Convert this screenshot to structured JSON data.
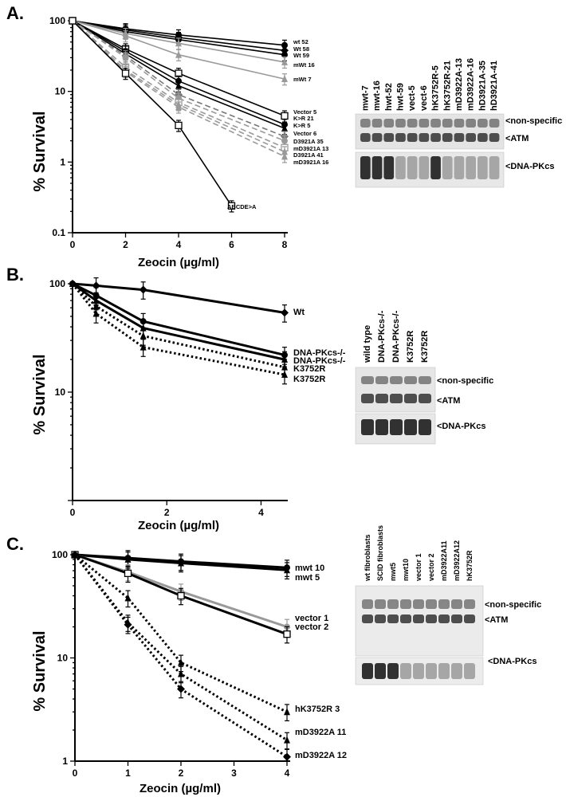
{
  "panels": [
    {
      "label": "A.",
      "ylabel": "% Survival",
      "xlabel": "Zeocin (µg/ml)"
    },
    {
      "label": "B.",
      "ylabel": "% Survival",
      "xlabel": "Zeocin (µg/ml)"
    },
    {
      "label": "C.",
      "ylabel": "% Survival",
      "xlabel": "Zeocin (µg/ml)"
    }
  ],
  "chart_data": [
    {
      "type": "line",
      "yscale": "log",
      "xlim": [
        0,
        8
      ],
      "ylim": [
        0.1,
        100
      ],
      "xticks": [
        "0",
        "2",
        "4",
        "6",
        "8"
      ],
      "yticks": [
        "0.1",
        "1",
        "10",
        "100"
      ],
      "xlabel": "Zeocin (µg/ml)",
      "ylabel": "% Survival",
      "series": [
        {
          "name": "wt 52",
          "x": [
            0,
            2,
            4,
            8
          ],
          "y": [
            100,
            77,
            63,
            45
          ],
          "color": "#000000",
          "style": "solid",
          "marker": "circle"
        },
        {
          "name": "Wt 58",
          "x": [
            0,
            2,
            4,
            8
          ],
          "y": [
            100,
            74,
            58,
            38
          ],
          "color": "#000000",
          "style": "solid",
          "marker": "diamond"
        },
        {
          "name": "Wt 59",
          "x": [
            0,
            2,
            4,
            8
          ],
          "y": [
            100,
            70,
            54,
            33
          ],
          "color": "#000000",
          "style": "solid",
          "marker": "circle"
        },
        {
          "name": "mWt 16",
          "x": [
            0,
            2,
            4,
            8
          ],
          "y": [
            100,
            66,
            48,
            26
          ],
          "color": "#999999",
          "style": "solid",
          "marker": "triangle"
        },
        {
          "name": "mWt 7",
          "x": [
            0,
            2,
            4,
            8
          ],
          "y": [
            100,
            61,
            33,
            15
          ],
          "color": "#999999",
          "style": "solid",
          "marker": "triangle"
        },
        {
          "name": "Vector 5",
          "x": [
            0,
            2,
            4,
            8
          ],
          "y": [
            100,
            40,
            18,
            4.5
          ],
          "color": "#000000",
          "style": "solid",
          "marker": "square"
        },
        {
          "name": "K>R 21",
          "x": [
            0,
            2,
            4,
            8
          ],
          "y": [
            100,
            37,
            14,
            3.4
          ],
          "color": "#000000",
          "style": "solid",
          "marker": "circle"
        },
        {
          "name": "K>R 5",
          "x": [
            0,
            2,
            4,
            8
          ],
          "y": [
            100,
            34,
            12,
            3.0
          ],
          "color": "#000000",
          "style": "solid",
          "marker": "triangle"
        },
        {
          "name": "Vector 6",
          "x": [
            0,
            2,
            4,
            8
          ],
          "y": [
            100,
            32,
            9,
            2.3
          ],
          "color": "#777777",
          "style": "dashed",
          "marker": "diamond"
        },
        {
          "name": "D3921A 35",
          "x": [
            0,
            2,
            4,
            8
          ],
          "y": [
            100,
            30,
            8,
            2.0
          ],
          "color": "#999999",
          "style": "dashed",
          "marker": "circle"
        },
        {
          "name": "mD3921A 13",
          "x": [
            0,
            2,
            4,
            8
          ],
          "y": [
            100,
            22,
            7,
            1.6
          ],
          "color": "#999999",
          "style": "dashed",
          "marker": "square"
        },
        {
          "name": "D3921A 41",
          "x": [
            0,
            2,
            4,
            8
          ],
          "y": [
            100,
            20,
            6.5,
            1.4
          ],
          "color": "#999999",
          "style": "dashed",
          "marker": "triangle"
        },
        {
          "name": "mD3921A 16",
          "x": [
            0,
            2,
            4,
            8
          ],
          "y": [
            100,
            19,
            6,
            1.2
          ],
          "color": "#999999",
          "style": "dashed",
          "marker": "triangle"
        },
        {
          "name": "ABCDE>A",
          "x": [
            0,
            2,
            4,
            6
          ],
          "y": [
            100,
            18,
            3.3,
            0.24
          ],
          "color": "#000000",
          "style": "solid",
          "marker": "square"
        }
      ]
    },
    {
      "type": "line",
      "yscale": "log",
      "xlim": [
        0,
        4.5
      ],
      "ylim": [
        1,
        100
      ],
      "xticks": [
        "0",
        "2",
        "4"
      ],
      "yticks": [
        "10",
        "100"
      ],
      "xlabel": "Zeocin (µg/ml)",
      "ylabel": "% Survival",
      "series": [
        {
          "name": "Wt",
          "x": [
            0,
            0.5,
            1.5,
            4.5
          ],
          "y": [
            100,
            96,
            88,
            54
          ],
          "color": "#000000",
          "style": "solid",
          "marker": "diamond"
        },
        {
          "name": "DNA-PKcs-/-",
          "x": [
            0,
            0.5,
            1.5,
            4.5
          ],
          "y": [
            100,
            78,
            45,
            22
          ],
          "color": "#000000",
          "style": "solid",
          "marker": "circle"
        },
        {
          "name": "DNA-PKcs-/-",
          "x": [
            0,
            0.5,
            1.5,
            4.5
          ],
          "y": [
            100,
            70,
            39,
            20
          ],
          "color": "#000000",
          "style": "solid",
          "marker": "triangle"
        },
        {
          "name": "K3752R",
          "x": [
            0,
            0.5,
            1.5,
            4.5
          ],
          "y": [
            100,
            62,
            33,
            17
          ],
          "color": "#000000",
          "style": "dotted",
          "marker": "triangle"
        },
        {
          "name": "K3752R",
          "x": [
            0,
            0.5,
            1.5,
            4.5
          ],
          "y": [
            100,
            53,
            26,
            14.5
          ],
          "color": "#000000",
          "style": "dotted",
          "marker": "triangle"
        }
      ]
    },
    {
      "type": "line",
      "yscale": "log",
      "xlim": [
        0,
        4
      ],
      "ylim": [
        1,
        100
      ],
      "xticks": [
        "0",
        "1",
        "2",
        "3",
        "4"
      ],
      "yticks": [
        "1",
        "10",
        "100"
      ],
      "xlabel": "Zeocin (µg/ml)",
      "ylabel": "% Survival",
      "series": [
        {
          "name": "mwt 10",
          "x": [
            0,
            1,
            2,
            4
          ],
          "y": [
            100,
            93,
            86,
            75
          ],
          "color": "#000000",
          "style": "solid",
          "marker": "circle"
        },
        {
          "name": "mwt 5",
          "x": [
            0,
            1,
            2,
            4
          ],
          "y": [
            100,
            90,
            83,
            71
          ],
          "color": "#000000",
          "style": "solid",
          "marker": "triangle"
        },
        {
          "name": "vector 1",
          "x": [
            0,
            1,
            2,
            4
          ],
          "y": [
            100,
            68,
            44,
            20
          ],
          "color": "#999999",
          "style": "solid",
          "marker": "circle"
        },
        {
          "name": "vector 2",
          "x": [
            0,
            1,
            2,
            4
          ],
          "y": [
            100,
            66,
            40,
            17
          ],
          "color": "#000000",
          "style": "solid",
          "marker": "square"
        },
        {
          "name": "hK3752R 3",
          "x": [
            0,
            1,
            2,
            4
          ],
          "y": [
            100,
            38,
            9,
            3
          ],
          "color": "#000000",
          "style": "dotted",
          "marker": "triangle"
        },
        {
          "name": "mD3922A 11",
          "x": [
            0,
            1,
            2,
            4
          ],
          "y": [
            100,
            22,
            7,
            1.6
          ],
          "color": "#000000",
          "style": "dotted",
          "marker": "triangle"
        },
        {
          "name": "mD3922A 12",
          "x": [
            0,
            1,
            2,
            4
          ],
          "y": [
            100,
            21,
            5,
            1.1
          ],
          "color": "#000000",
          "style": "dotted",
          "marker": "diamond"
        }
      ]
    }
  ],
  "blots": [
    {
      "lanes": [
        "mwt-7",
        "mwt-16",
        "hwt-52",
        "hwt-59",
        "vect-5",
        "vect-6",
        "hK3752R-5",
        "hK3752R-21",
        "mD3922A-13",
        "mD3922A-16",
        "hD3921A-35",
        "hD3921A-41"
      ],
      "bands": [
        "<non-specific",
        "<ATM",
        "<DNA-PKcs"
      ]
    },
    {
      "lanes": [
        "wild type",
        "DNA-PKcs-/-",
        "DNA-PKcs-/-",
        "K3752R",
        "K3752R"
      ],
      "bands": [
        "<non-specific",
        "<ATM",
        "<DNA-PKcs"
      ]
    },
    {
      "lanes": [
        "wt fibroblasts",
        "SCID fibroblasts",
        "mwt5",
        "mwt10",
        "vector 1",
        "vector 2",
        "mD3922A11",
        "mD3922A12",
        "hK3752R"
      ],
      "bands": [
        "<non-specific",
        "<ATM",
        "<DNA-PKcs"
      ]
    }
  ]
}
